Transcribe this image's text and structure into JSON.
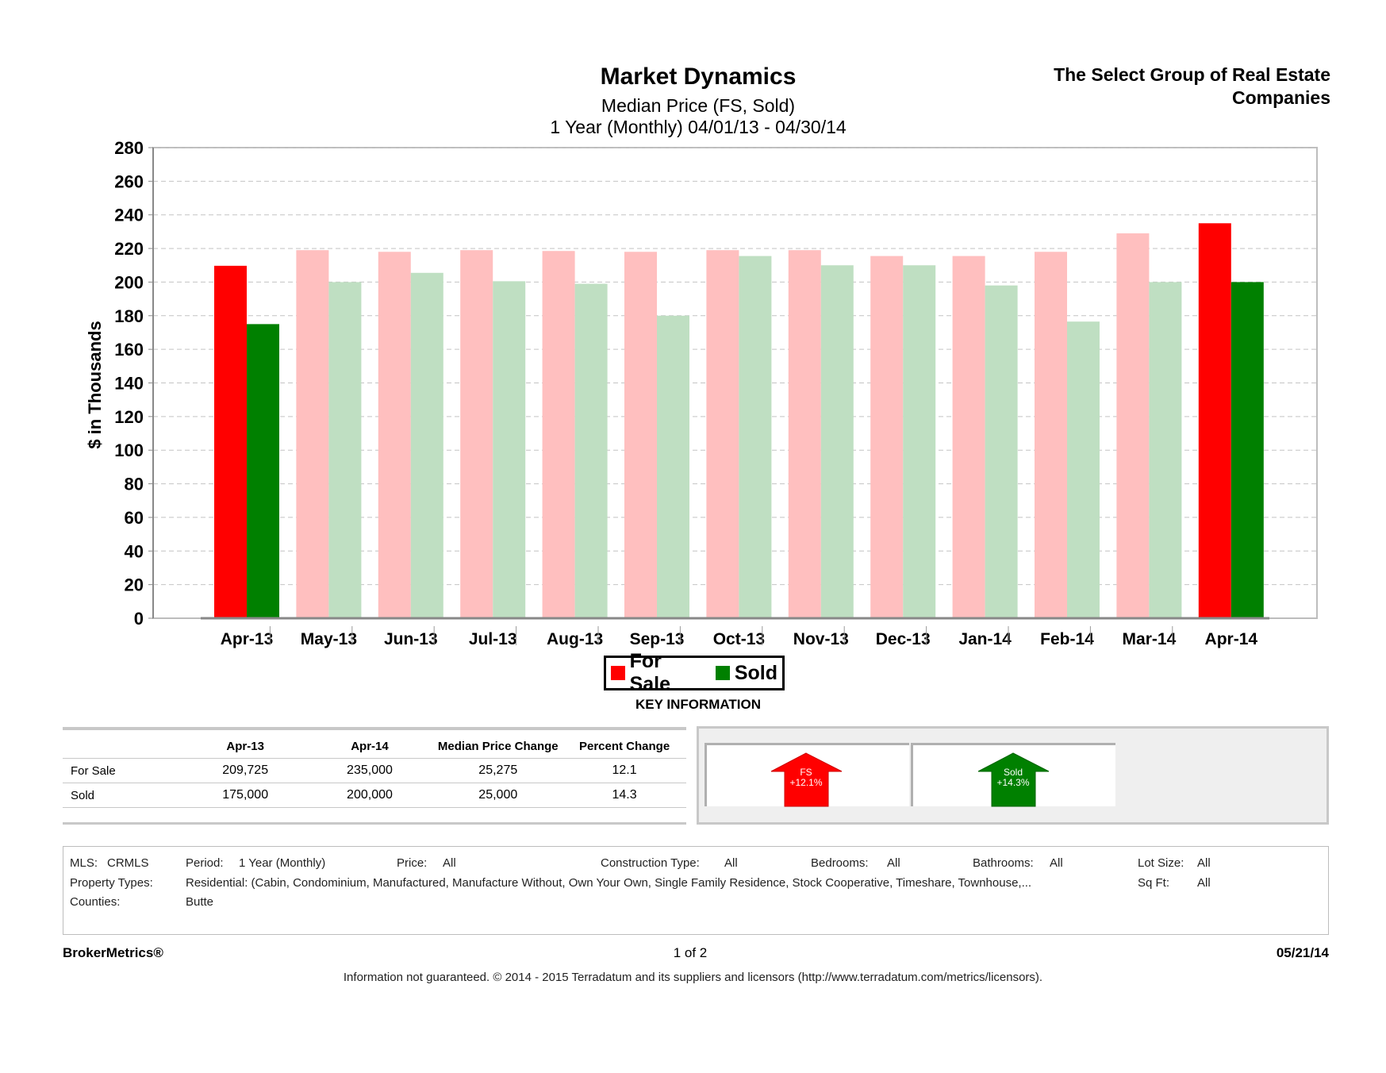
{
  "header": {
    "title": "Market Dynamics",
    "subtitle": "Median Price (FS, Sold)",
    "period": "1 Year (Monthly) 04/01/13 - 04/30/14",
    "company": "The Select Group of Real Estate Companies"
  },
  "chart_data": {
    "type": "bar",
    "ylabel": "$ in Thousands",
    "ylim": [
      0,
      280
    ],
    "yticks": [
      0,
      20,
      40,
      60,
      80,
      100,
      120,
      140,
      160,
      180,
      200,
      220,
      240,
      260,
      280
    ],
    "categories": [
      "Apr-13",
      "May-13",
      "Jun-13",
      "Jul-13",
      "Aug-13",
      "Sep-13",
      "Oct-13",
      "Nov-13",
      "Dec-13",
      "Jan-14",
      "Feb-14",
      "Mar-14",
      "Apr-14"
    ],
    "series": [
      {
        "name": "For Sale",
        "values": [
          209.7,
          219,
          218,
          219,
          218.5,
          218,
          219,
          219,
          215.5,
          215.5,
          218,
          229,
          235
        ]
      },
      {
        "name": "Sold",
        "values": [
          175,
          200,
          205.5,
          200.5,
          199,
          180,
          215.5,
          210,
          210,
          198,
          176.5,
          200,
          200
        ]
      }
    ],
    "highlighted_categories": [
      "Apr-13",
      "Apr-14"
    ],
    "grid": true,
    "legend": "bottom-center"
  },
  "colors": {
    "for_sale": "#ff0000",
    "for_sale_faded": "#ffbfbf",
    "sold": "#008000",
    "sold_faded": "#bfdfc2"
  },
  "legend": {
    "for_sale": "For Sale",
    "sold": "Sold"
  },
  "key_information": "KEY INFORMATION",
  "stats": {
    "headers": [
      "",
      "Apr-13",
      "Apr-14",
      "Median Price Change",
      "Percent Change"
    ],
    "rows": [
      [
        "For Sale",
        "209,725",
        "235,000",
        "25,275",
        "12.1"
      ],
      [
        "Sold",
        "175,000",
        "200,000",
        "25,000",
        "14.3"
      ]
    ]
  },
  "arrows": {
    "fs": {
      "label": "FS",
      "value": "+12.1%"
    },
    "sold": {
      "label": "Sold",
      "value": "+14.3%"
    }
  },
  "criteria": {
    "mls_label": "MLS:",
    "mls": "CRMLS",
    "period_label": "Period:",
    "period": "1 Year (Monthly)",
    "price_label": "Price:",
    "price": "All",
    "construction_label": "Construction Type:",
    "construction": "All",
    "bedrooms_label": "Bedrooms:",
    "bedrooms": "All",
    "bathrooms_label": "Bathrooms:",
    "bathrooms": "All",
    "lot_label": "Lot Size:",
    "lot": "All",
    "property_label": "Property Types:",
    "property": "Residential: (Cabin, Condominium, Manufactured, Manufacture Without, Own Your Own, Single Family Residence, Stock Cooperative, Timeshare, Townhouse,...",
    "sqft_label": "Sq Ft:",
    "sqft": "All",
    "counties_label": "Counties:",
    "counties": "Butte"
  },
  "footer": {
    "brand": "BrokerMetrics®",
    "page": "1 of 2",
    "date": "05/21/14",
    "disclaimer": "Information not guaranteed.  © 2014 - 2015 Terradatum and its suppliers and licensors (http://www.terradatum.com/metrics/licensors)."
  }
}
